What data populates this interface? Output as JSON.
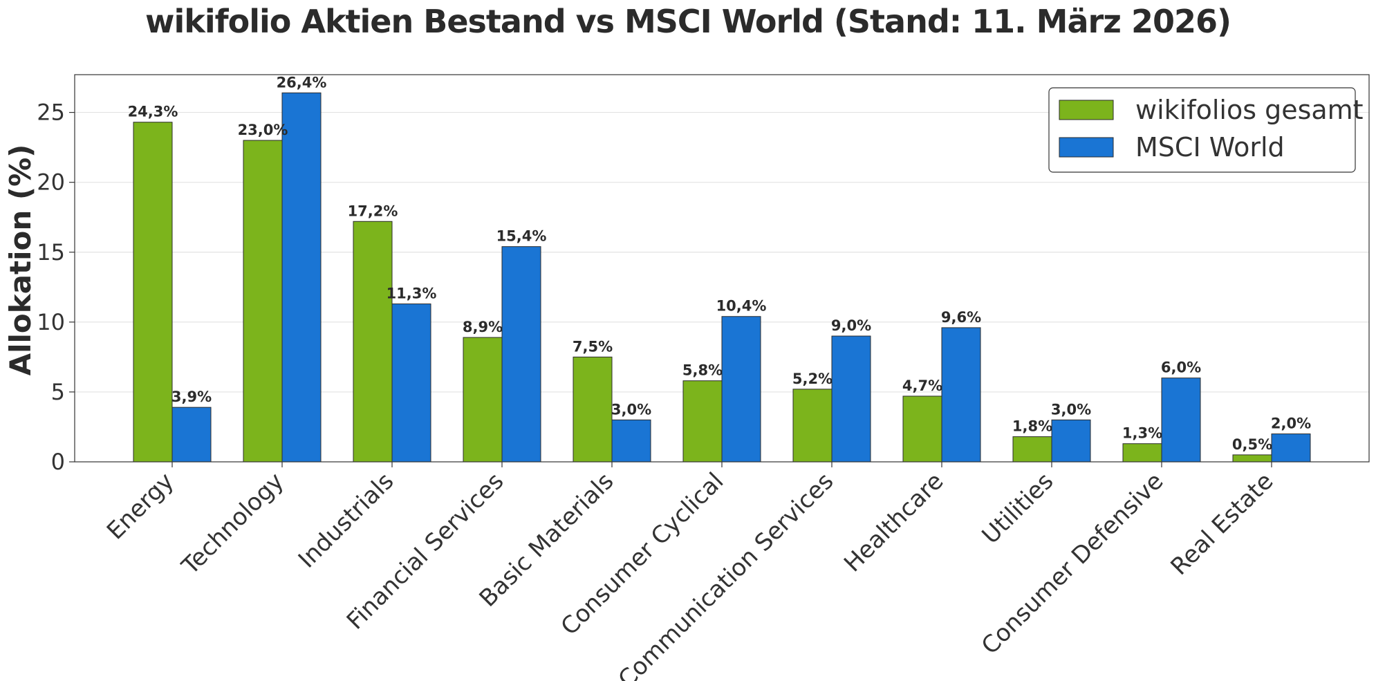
{
  "chart_data": {
    "type": "bar",
    "title": "wikifolio Aktien Bestand vs MSCI World (Stand: 11. März 2026)",
    "xlabel": "",
    "ylabel": "Allokation (%)",
    "ylim": [
      0,
      27.7
    ],
    "yticks": [
      0,
      5,
      10,
      15,
      20,
      25
    ],
    "grid": "horizontal",
    "legend_position": "top-right",
    "categories": [
      "Energy",
      "Technology",
      "Industrials",
      "Financial Services",
      "Basic Materials",
      "Consumer Cyclical",
      "Communication Services",
      "Healthcare",
      "Utilities",
      "Consumer Defensive",
      "Real Estate"
    ],
    "series": [
      {
        "name": "wikifolios gesamt",
        "color": "#7cb41c",
        "values": [
          24.3,
          23.0,
          17.2,
          8.9,
          7.5,
          5.8,
          5.2,
          4.7,
          1.8,
          1.3,
          0.5
        ],
        "labels": [
          "24,3%",
          "23,0%",
          "17,2%",
          "8,9%",
          "7,5%",
          "5,8%",
          "5,2%",
          "4,7%",
          "1,8%",
          "1,3%",
          "0,5%"
        ]
      },
      {
        "name": "MSCI World",
        "color": "#1a75d4",
        "values": [
          3.9,
          26.4,
          11.3,
          15.4,
          3.0,
          10.4,
          9.0,
          9.6,
          3.0,
          6.0,
          2.0
        ],
        "labels": [
          "3,9%",
          "26,4%",
          "11,3%",
          "15,4%",
          "3,0%",
          "10,4%",
          "9,0%",
          "9,6%",
          "3,0%",
          "6,0%",
          "2,0%"
        ]
      }
    ]
  }
}
